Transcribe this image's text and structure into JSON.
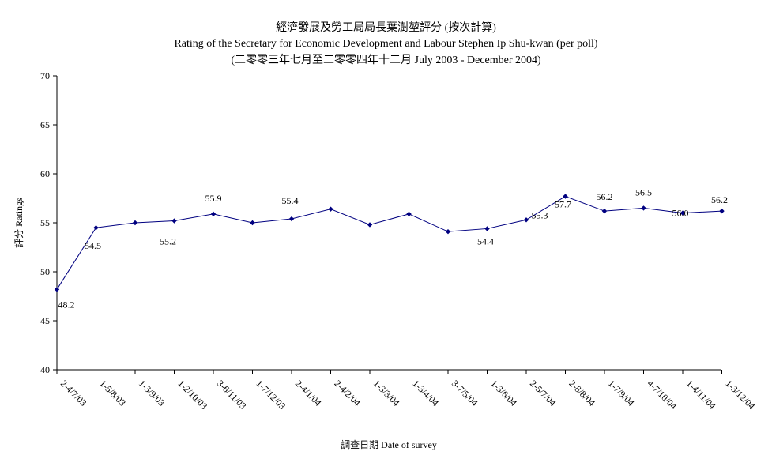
{
  "chart_data": {
    "type": "line",
    "title": "經濟發展及勞工局局長葉澍堃評分 (按次計算)",
    "subtitle": "Rating of the Secretary for Economic Development and Labour Stephen Ip Shu-kwan  (per poll)",
    "subtitle2": "(二零零三年七月至二零零四年十二月 July 2003 - December 2004)",
    "xlabel": "調查日期 Date of survey",
    "ylabel": "評分 Ratings",
    "ylim": [
      40,
      70
    ],
    "yticks": [
      40,
      45,
      50,
      55,
      60,
      65,
      70
    ],
    "grid": false,
    "categories": [
      "2-4/7/03",
      "1-5/8/03",
      "1-3/9/03",
      "1-2/10/03",
      "3-6/11/03",
      "1-7/12/03",
      "2-4/1/04",
      "2-4/2/04",
      "1-3/3/04",
      "1-3/4/04",
      "3-7/5/04",
      "1-3/6/04",
      "2-5/7/04",
      "2-8/8/04",
      "1-7/9/04",
      "4-7/10/04",
      "1-4/11/04",
      "1-3/12/04"
    ],
    "values": [
      48.2,
      54.5,
      55.0,
      55.2,
      55.9,
      55.0,
      55.4,
      56.4,
      54.8,
      55.9,
      54.1,
      54.4,
      55.3,
      57.7,
      56.2,
      56.5,
      56.0,
      56.2
    ],
    "data_labels": [
      {
        "index": 0,
        "text": "48.2"
      },
      {
        "index": 1,
        "text": "54.5"
      },
      {
        "index": 3,
        "text": "55.2"
      },
      {
        "index": 4,
        "text": "55.9"
      },
      {
        "index": 6,
        "text": "55.4"
      },
      {
        "index": 11,
        "text": "54.4"
      },
      {
        "index": 12,
        "text": "55.3"
      },
      {
        "index": 13,
        "text": "57.7"
      },
      {
        "index": 14,
        "text": "56.2"
      },
      {
        "index": 15,
        "text": "56.5"
      },
      {
        "index": 16,
        "text": "56.0"
      },
      {
        "index": 17,
        "text": "56.2"
      }
    ],
    "series_color": "#000080"
  }
}
